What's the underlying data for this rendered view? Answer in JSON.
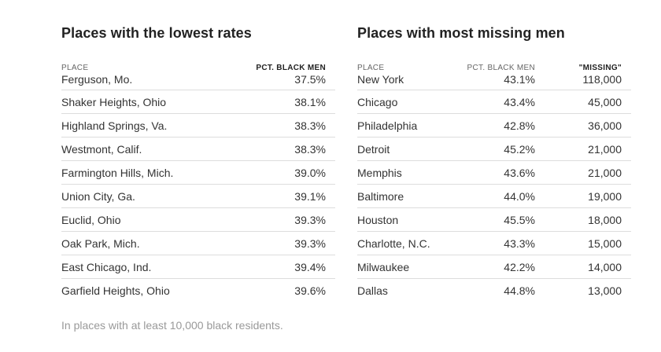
{
  "lowest_rates": {
    "title": "Places with the lowest rates",
    "headers": {
      "place": "PLACE",
      "pct": "PCT. BLACK MEN"
    },
    "rows": [
      {
        "place": "Ferguson, Mo.",
        "pct": "37.5%"
      },
      {
        "place": "Shaker Heights, Ohio",
        "pct": "38.1%"
      },
      {
        "place": "Highland Springs, Va.",
        "pct": "38.3%"
      },
      {
        "place": "Westmont, Calif.",
        "pct": "38.3%"
      },
      {
        "place": "Farmington Hills, Mich.",
        "pct": "39.0%"
      },
      {
        "place": "Union City, Ga.",
        "pct": "39.1%"
      },
      {
        "place": "Euclid, Ohio",
        "pct": "39.3%"
      },
      {
        "place": "Oak Park, Mich.",
        "pct": "39.3%"
      },
      {
        "place": "East Chicago, Ind.",
        "pct": "39.4%"
      },
      {
        "place": "Garfield Heights, Ohio",
        "pct": "39.6%"
      }
    ]
  },
  "most_missing": {
    "title": "Places with most missing men",
    "headers": {
      "place": "PLACE",
      "pct": "PCT. BLACK MEN",
      "missing": "\"MISSING\""
    },
    "rows": [
      {
        "place": "New York",
        "pct": "43.1%",
        "missing": "118,000"
      },
      {
        "place": "Chicago",
        "pct": "43.4%",
        "missing": "45,000"
      },
      {
        "place": "Philadelphia",
        "pct": "42.8%",
        "missing": "36,000"
      },
      {
        "place": "Detroit",
        "pct": "45.2%",
        "missing": "21,000"
      },
      {
        "place": "Memphis",
        "pct": "43.6%",
        "missing": "21,000"
      },
      {
        "place": "Baltimore",
        "pct": "44.0%",
        "missing": "19,000"
      },
      {
        "place": "Houston",
        "pct": "45.5%",
        "missing": "18,000"
      },
      {
        "place": "Charlotte, N.C.",
        "pct": "43.3%",
        "missing": "15,000"
      },
      {
        "place": "Milwaukee",
        "pct": "42.2%",
        "missing": "14,000"
      },
      {
        "place": "Dallas",
        "pct": "44.8%",
        "missing": "13,000"
      }
    ]
  },
  "footnote": "In places with at least 10,000 black residents."
}
